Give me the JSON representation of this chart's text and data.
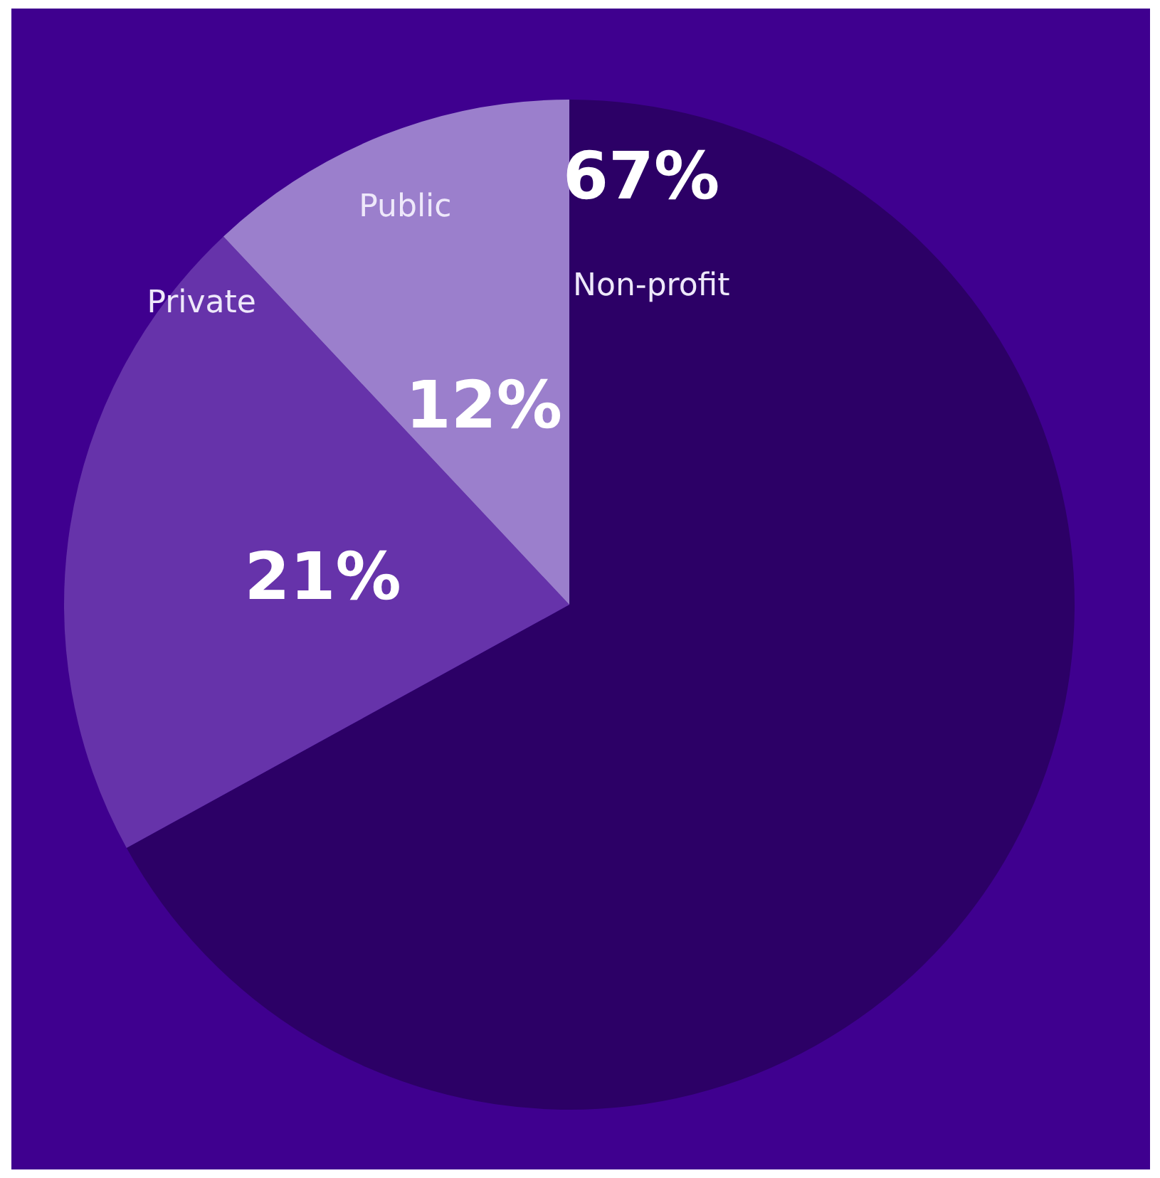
{
  "chart_data": {
    "type": "pie",
    "categories": [
      "Non-profit",
      "Private",
      "Public"
    ],
    "values": [
      67,
      21,
      12
    ],
    "colors": [
      "#2c0066",
      "#6633aa",
      "#9b7fcc"
    ],
    "value_labels": [
      "67%",
      "21%",
      "12%"
    ]
  }
}
